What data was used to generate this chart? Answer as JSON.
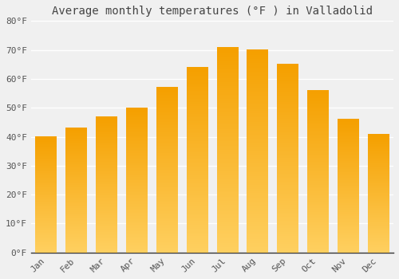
{
  "title": "Average monthly temperatures (°F ) in Valladolid",
  "months": [
    "Jan",
    "Feb",
    "Mar",
    "Apr",
    "May",
    "Jun",
    "Jul",
    "Aug",
    "Sep",
    "Oct",
    "Nov",
    "Dec"
  ],
  "values": [
    40,
    43,
    47,
    50,
    57,
    64,
    71,
    70,
    65,
    56,
    46,
    41
  ],
  "bar_color_bottom": "#FFD060",
  "bar_color_top": "#F5A000",
  "ylim": [
    0,
    80
  ],
  "yticks": [
    0,
    10,
    20,
    30,
    40,
    50,
    60,
    70,
    80
  ],
  "background_color": "#f0f0f0",
  "plot_bg_color": "#f0f0f0",
  "grid_color": "#ffffff",
  "title_fontsize": 10,
  "tick_fontsize": 8,
  "font_family": "monospace"
}
